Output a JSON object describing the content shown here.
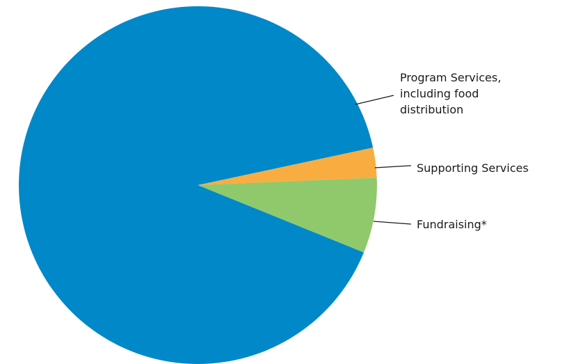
{
  "chart_data": {
    "type": "pie",
    "title": "",
    "slices": [
      {
        "label": [
          "Program Services,",
          "including food",
          "distribution"
        ],
        "value": 90.5,
        "color": "#0088c9"
      },
      {
        "label": [
          "Supporting Services"
        ],
        "value": 2.7,
        "color": "#f9ad40"
      },
      {
        "label": [
          "Fundraising*"
        ],
        "value": 6.8,
        "color": "#8fc96b"
      }
    ],
    "legend": "none"
  }
}
